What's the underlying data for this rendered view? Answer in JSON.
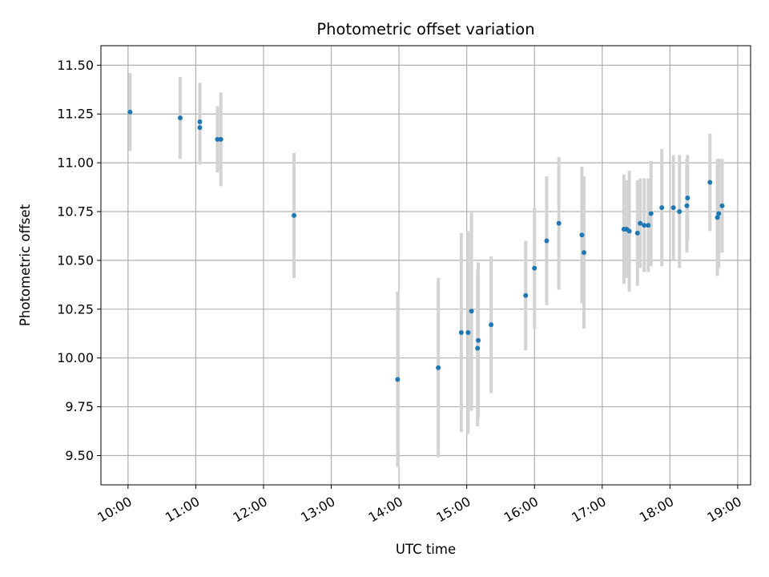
{
  "chart_data": {
    "type": "scatter",
    "title": "Photometric offset variation",
    "xlabel": "UTC time",
    "ylabel": "Photometric offset",
    "grid": true,
    "xlim": [
      9.6,
      19.19
    ],
    "ylim": [
      9.35,
      11.6
    ],
    "x_ticks": [
      {
        "value": 10,
        "label": "10:00"
      },
      {
        "value": 11,
        "label": "11:00"
      },
      {
        "value": 12,
        "label": "12:00"
      },
      {
        "value": 13,
        "label": "13:00"
      },
      {
        "value": 14,
        "label": "14:00"
      },
      {
        "value": 15,
        "label": "15:00"
      },
      {
        "value": 16,
        "label": "16:00"
      },
      {
        "value": 17,
        "label": "17:00"
      },
      {
        "value": 18,
        "label": "18:00"
      },
      {
        "value": 19,
        "label": "19:00"
      }
    ],
    "y_ticks": [
      {
        "value": 9.5,
        "label": "9.50"
      },
      {
        "value": 9.75,
        "label": "9.75"
      },
      {
        "value": 10.0,
        "label": "10.00"
      },
      {
        "value": 10.25,
        "label": "10.25"
      },
      {
        "value": 10.5,
        "label": "10.50"
      },
      {
        "value": 10.75,
        "label": "10.75"
      },
      {
        "value": 11.0,
        "label": "11.00"
      },
      {
        "value": 11.25,
        "label": "11.25"
      },
      {
        "value": 11.5,
        "label": "11.50"
      }
    ],
    "colors": {
      "point": "#1f77b4",
      "errorbar": "#d3d3d3",
      "grid": "#b0b0b0"
    },
    "points": [
      {
        "x": 10.03,
        "y": 11.26,
        "err": 0.2
      },
      {
        "x": 10.77,
        "y": 11.23,
        "err": 0.21
      },
      {
        "x": 11.06,
        "y": 11.21,
        "err": 0.2
      },
      {
        "x": 11.06,
        "y": 11.18,
        "err": 0.19
      },
      {
        "x": 11.32,
        "y": 11.12,
        "err": 0.17
      },
      {
        "x": 11.37,
        "y": 11.12,
        "err": 0.24
      },
      {
        "x": 12.45,
        "y": 10.73,
        "err": 0.32
      },
      {
        "x": 13.98,
        "y": 9.89,
        "err": 0.45
      },
      {
        "x": 14.58,
        "y": 9.95,
        "err": 0.46
      },
      {
        "x": 14.92,
        "y": 10.13,
        "err": 0.51
      },
      {
        "x": 15.02,
        "y": 10.13,
        "err": 0.52
      },
      {
        "x": 15.07,
        "y": 10.24,
        "err": 0.51
      },
      {
        "x": 15.16,
        "y": 10.05,
        "err": 0.4
      },
      {
        "x": 15.17,
        "y": 10.09,
        "err": 0.4
      },
      {
        "x": 15.36,
        "y": 10.17,
        "err": 0.35
      },
      {
        "x": 15.87,
        "y": 10.32,
        "err": 0.28
      },
      {
        "x": 16.0,
        "y": 10.46,
        "err": 0.31
      },
      {
        "x": 16.18,
        "y": 10.6,
        "err": 0.33
      },
      {
        "x": 16.36,
        "y": 10.69,
        "err": 0.34
      },
      {
        "x": 16.7,
        "y": 10.63,
        "err": 0.35
      },
      {
        "x": 16.73,
        "y": 10.54,
        "err": 0.39
      },
      {
        "x": 17.32,
        "y": 10.66,
        "err": 0.28
      },
      {
        "x": 17.36,
        "y": 10.66,
        "err": 0.25
      },
      {
        "x": 17.4,
        "y": 10.65,
        "err": 0.31
      },
      {
        "x": 17.52,
        "y": 10.64,
        "err": 0.27
      },
      {
        "x": 17.56,
        "y": 10.69,
        "err": 0.23
      },
      {
        "x": 17.62,
        "y": 10.68,
        "err": 0.24
      },
      {
        "x": 17.68,
        "y": 10.68,
        "err": 0.24
      },
      {
        "x": 17.72,
        "y": 10.74,
        "err": 0.27
      },
      {
        "x": 17.88,
        "y": 10.77,
        "err": 0.3
      },
      {
        "x": 18.05,
        "y": 10.77,
        "err": 0.27
      },
      {
        "x": 18.14,
        "y": 10.75,
        "err": 0.29
      },
      {
        "x": 18.25,
        "y": 10.78,
        "err": 0.24
      },
      {
        "x": 18.26,
        "y": 10.82,
        "err": 0.22
      },
      {
        "x": 18.59,
        "y": 10.9,
        "err": 0.25
      },
      {
        "x": 18.7,
        "y": 10.72,
        "err": 0.3
      },
      {
        "x": 18.72,
        "y": 10.74,
        "err": 0.28
      },
      {
        "x": 18.77,
        "y": 10.78,
        "err": 0.24
      }
    ]
  }
}
